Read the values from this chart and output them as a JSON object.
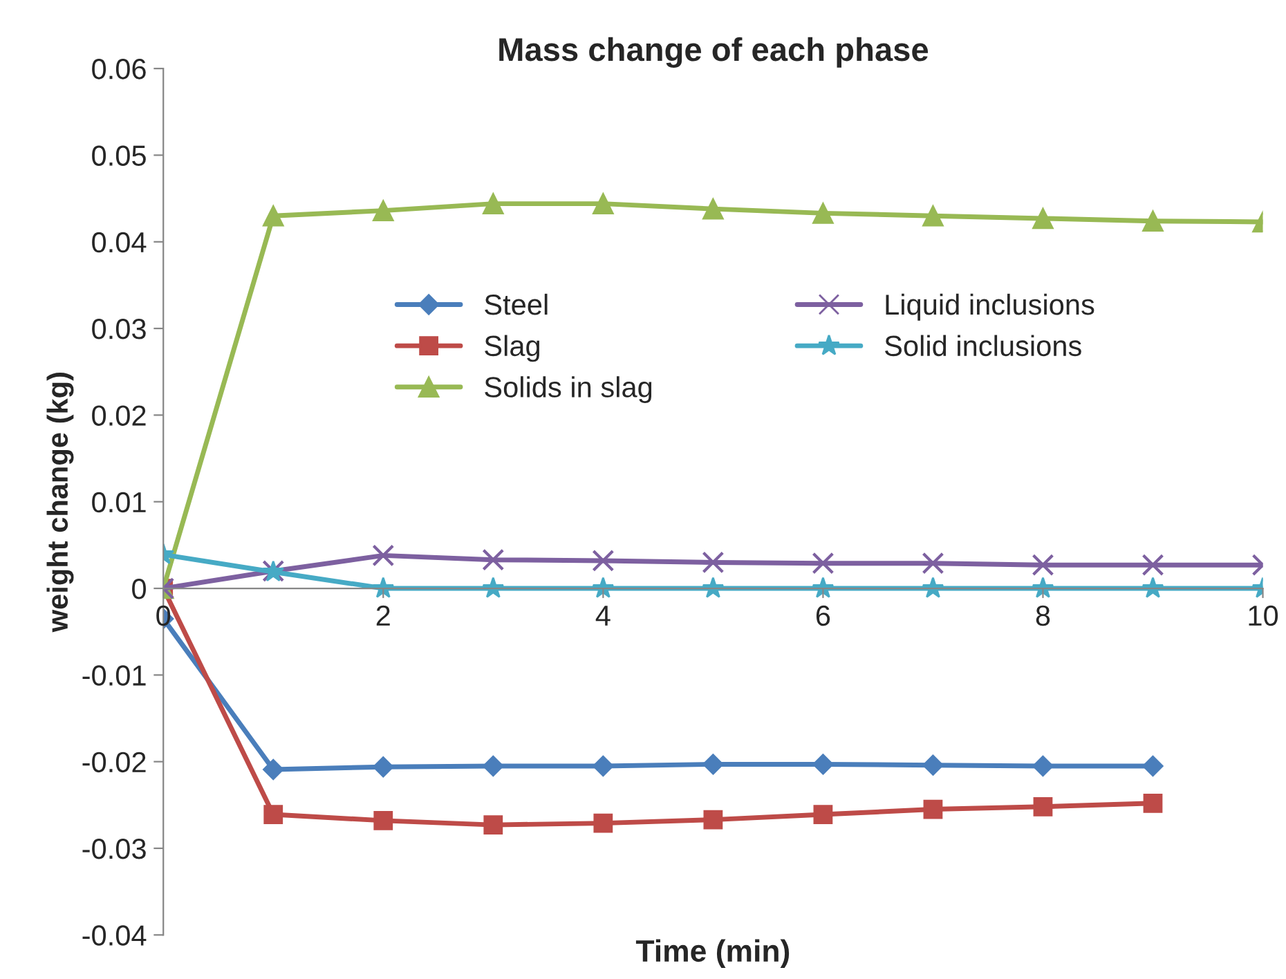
{
  "chart_data": {
    "type": "line",
    "title": "Mass change of each phase",
    "xlabel": "Time (min)",
    "ylabel": "weight change (kg)",
    "x": [
      0,
      1,
      2,
      3,
      4,
      5,
      6,
      7,
      8,
      9,
      10
    ],
    "series": [
      {
        "name": "Steel",
        "color": "#4a7ebb",
        "marker": "diamond",
        "values": [
          -0.0035,
          -0.0209,
          -0.0206,
          -0.0205,
          -0.0205,
          -0.0203,
          -0.0203,
          -0.0204,
          -0.0205,
          -0.0205,
          null
        ]
      },
      {
        "name": "Slag",
        "color": "#be4b48",
        "marker": "square",
        "values": [
          0,
          -0.0261,
          -0.0268,
          -0.0273,
          -0.0271,
          -0.0267,
          -0.0261,
          -0.0255,
          -0.0252,
          -0.0248,
          null
        ]
      },
      {
        "name": "Solids in slag",
        "color": "#98b954",
        "marker": "triangle",
        "values": [
          0,
          0.043,
          0.0436,
          0.0444,
          0.0444,
          0.0438,
          0.0433,
          0.043,
          0.0427,
          0.0424,
          0.0423
        ]
      },
      {
        "name": "Liquid inclusions",
        "color": "#7d60a0",
        "marker": "cross",
        "values": [
          0,
          0.002,
          0.0038,
          0.0033,
          0.0032,
          0.003,
          0.0029,
          0.0029,
          0.0027,
          0.0027,
          0.0027
        ]
      },
      {
        "name": "Solid inclusions",
        "color": "#46aac5",
        "marker": "star",
        "values": [
          0.0039,
          0.0019,
          0,
          0,
          0,
          0,
          0,
          0,
          0,
          0,
          0
        ]
      }
    ],
    "xlim": [
      0,
      10
    ],
    "xticks": [
      0,
      2,
      4,
      6,
      8,
      10
    ],
    "ylim": [
      -0.04,
      0.06
    ],
    "yticks": [
      {
        "value": -0.04,
        "label": "-0.04"
      },
      {
        "value": -0.03,
        "label": "-0.03"
      },
      {
        "value": -0.02,
        "label": "-0.02"
      },
      {
        "value": -0.01,
        "label": "-0.01"
      },
      {
        "value": 0,
        "label": "0"
      },
      {
        "value": 0.01,
        "label": "0.01"
      },
      {
        "value": 0.02,
        "label": "0.02"
      },
      {
        "value": 0.03,
        "label": "0.03"
      },
      {
        "value": 0.04,
        "label": "0.04"
      },
      {
        "value": 0.05,
        "label": "0.05"
      },
      {
        "value": 0.06,
        "label": "0.06"
      }
    ],
    "grid": false,
    "legend": "top",
    "line_style": "solid"
  }
}
